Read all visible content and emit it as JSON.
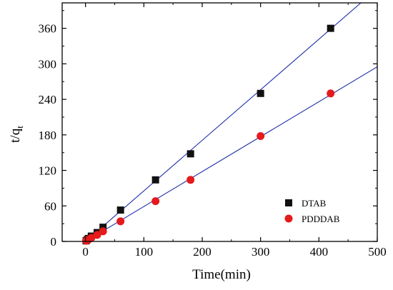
{
  "chart_data": {
    "type": "scatter",
    "title": "",
    "xlabel": "Time(min)",
    "ylabel_main": "t/q",
    "ylabel_sub": "t",
    "xlim": [
      -40,
      500
    ],
    "ylim": [
      0,
      403
    ],
    "x_ticks": [
      0,
      100,
      200,
      300,
      400,
      500
    ],
    "y_ticks": [
      0,
      60,
      120,
      180,
      240,
      300,
      360
    ],
    "legend_position": "lower-right",
    "grid": false,
    "series": [
      {
        "name": "DTAB",
        "marker": "square",
        "color": "#111111",
        "line_color": "#1f2fa8",
        "x": [
          1,
          3,
          5,
          10,
          20,
          30,
          60,
          120,
          180,
          300,
          420
        ],
        "y": [
          1,
          3,
          5,
          9,
          15,
          24,
          53,
          104,
          148,
          250,
          360
        ],
        "fit": {
          "slope": 0.854,
          "intercept": 0
        }
      },
      {
        "name": "PDDDAB",
        "marker": "circle",
        "color": "#e41a1c",
        "line_color": "#1f2fa8",
        "x": [
          1,
          3,
          5,
          10,
          20,
          30,
          60,
          120,
          180,
          300,
          420
        ],
        "y": [
          1,
          2,
          3,
          6,
          11,
          17,
          34,
          68,
          104,
          178,
          250
        ],
        "fit": {
          "slope": 0.59,
          "intercept": 0
        }
      }
    ]
  }
}
